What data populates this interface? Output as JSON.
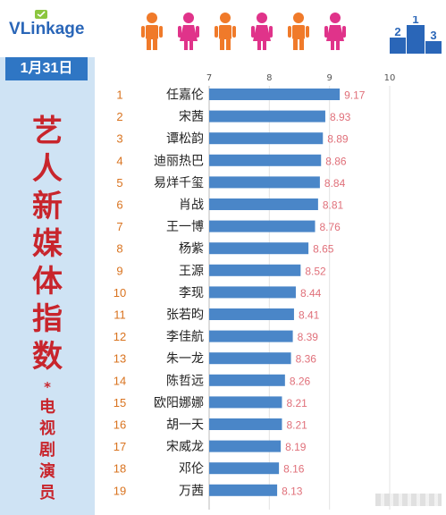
{
  "header": {
    "logo_text": "VLinkage",
    "logo_v": "V",
    "logo_rest": "Linkage",
    "podium_icon": "podium-icon",
    "podium_numbers": [
      "2",
      "1",
      "3"
    ],
    "people_icons": [
      "person-orange",
      "person-pink",
      "person-orange",
      "person-pink",
      "person-orange",
      "person-pink"
    ],
    "colors": {
      "orange": "#f07a2a",
      "pink": "#e0338a",
      "blue": "#2a66b8"
    }
  },
  "sidebar": {
    "date": "1月31日",
    "title_chars": [
      "艺",
      "人",
      "新",
      "媒",
      "体",
      "指",
      "数"
    ],
    "star": "*",
    "subtitle_chars": [
      "电",
      "视",
      "剧",
      "演",
      "员"
    ]
  },
  "chart_data": {
    "type": "bar",
    "orientation": "horizontal",
    "xlim": [
      7,
      10
    ],
    "xticks": [
      "7",
      "8",
      "9",
      "10"
    ],
    "bar_color": "#4a86c8",
    "value_color": "#e0707a",
    "rank_color": "#d9731f",
    "ranks": [
      "1",
      "2",
      "3",
      "4",
      "5",
      "6",
      "7",
      "8",
      "9",
      "10",
      "11",
      "12",
      "13",
      "14",
      "15",
      "16",
      "17",
      "18",
      "19"
    ],
    "categories": [
      "任嘉伦",
      "宋茜",
      "谭松韵",
      "迪丽热巴",
      "易烊千玺",
      "肖战",
      "王一博",
      "杨紫",
      "王源",
      "李现",
      "张若昀",
      "李佳航",
      "朱一龙",
      "陈哲远",
      "欧阳娜娜",
      "胡一天",
      "宋威龙",
      "邓伦",
      "万茜"
    ],
    "values": [
      9.17,
      8.93,
      8.89,
      8.86,
      8.84,
      8.81,
      8.76,
      8.65,
      8.52,
      8.44,
      8.41,
      8.39,
      8.36,
      8.26,
      8.21,
      8.21,
      8.19,
      8.16,
      8.13
    ],
    "value_labels": [
      "9.17",
      "8.93",
      "8.89",
      "8.86",
      "8.84",
      "8.81",
      "8.76",
      "8.65",
      "8.52",
      "8.44",
      "8.41",
      "8.39",
      "8.36",
      "8.26",
      "8.21",
      "8.21",
      "8.19",
      "8.16",
      "8.13"
    ]
  }
}
